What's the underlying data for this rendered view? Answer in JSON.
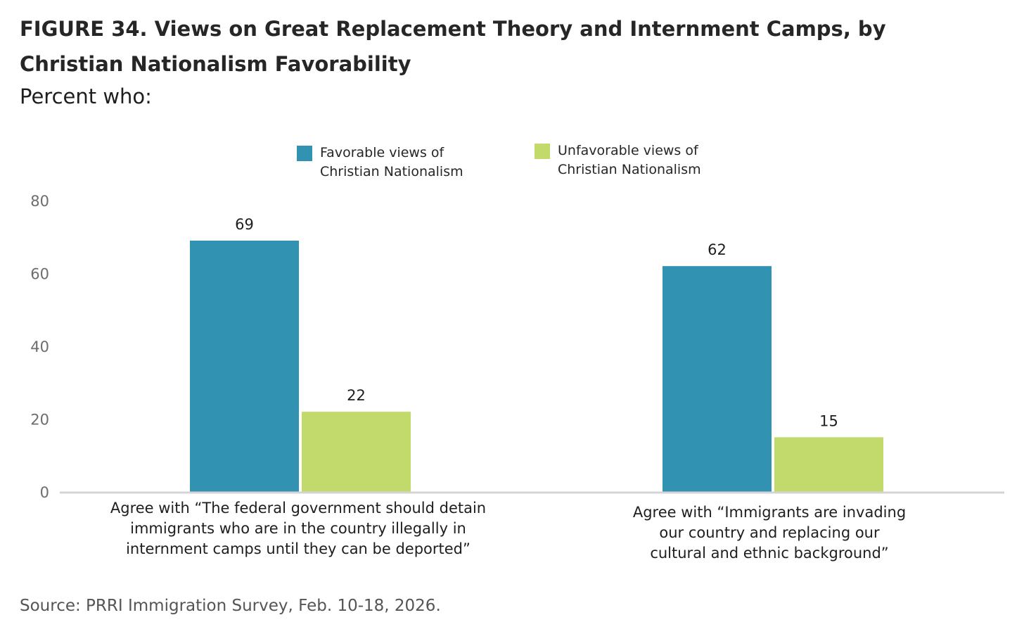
{
  "header": {
    "title": "FIGURE 34.  Views on Great Replacement Theory and Internment Camps, by Christian Nationalism Favorability",
    "subtitle": "Percent who:"
  },
  "footer": {
    "source": "Source: PRRI Immigration Survey, Feb. 10-18, 2026."
  },
  "colors": {
    "favorable": "#3292b1",
    "unfavorable": "#c2da6b",
    "axis_text": "#6d6d6d",
    "baseline": "#d4d4d4"
  },
  "chart_data": {
    "type": "bar",
    "title": "FIGURE 34.  Views on Great Replacement Theory and Internment Camps, by Christian Nationalism Favorability",
    "subtitle": "Percent who:",
    "categories": [
      "Agree with “The federal government should detain\nimmigrants who are in the country illegally in\ninternment camps until they can be deported”",
      "Agree with “Immigrants are invading\nour country and replacing our\ncultural and ethnic background”"
    ],
    "series": [
      {
        "name": "Favorable views of\nChristian Nationalism",
        "values": [
          69,
          62
        ],
        "color": "#3292b1"
      },
      {
        "name": "Unfavorable views of\nChristian Nationalism",
        "values": [
          22,
          15
        ],
        "color": "#c2da6b"
      }
    ],
    "ylim": [
      0,
      80
    ],
    "yticks": [
      0,
      20,
      40,
      60,
      80
    ],
    "xlabel": "",
    "ylabel": "",
    "grid": false,
    "legend": "top-center",
    "data_labels": true
  }
}
